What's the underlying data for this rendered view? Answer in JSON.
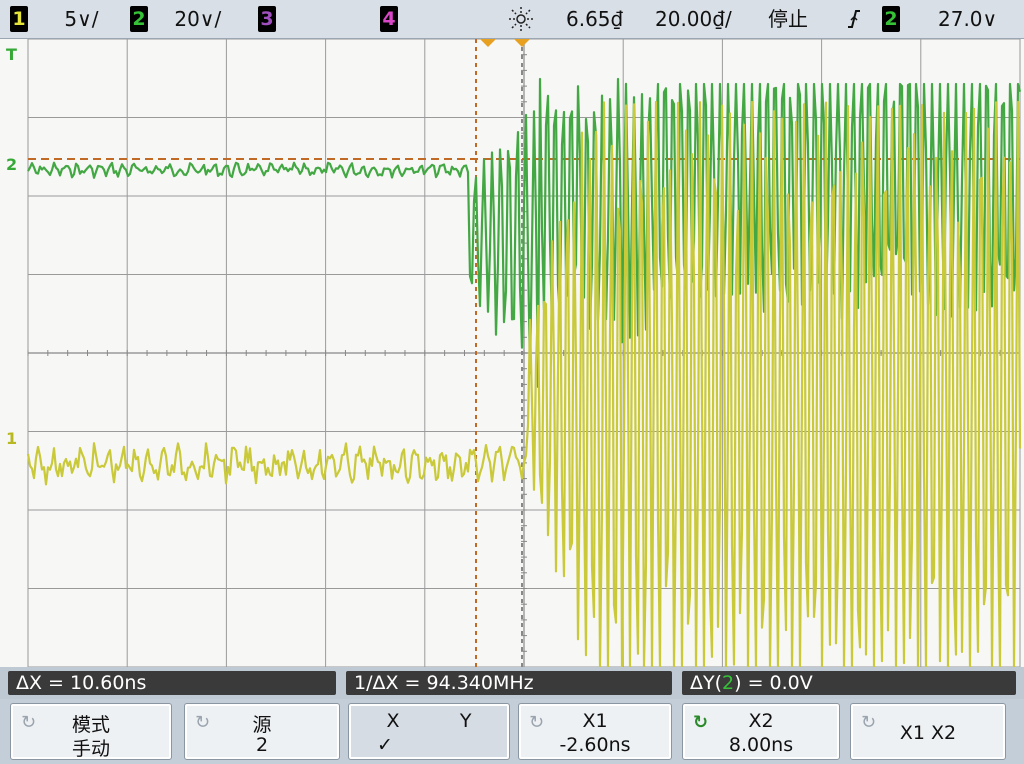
{
  "top_bar": {
    "ch1": {
      "num": "1",
      "scale": "5∨/",
      "color": "#e3e33a"
    },
    "ch2": {
      "num": "2",
      "scale": "20∨/",
      "color": "#36c236"
    },
    "ch3": {
      "num": "3",
      "scale": "",
      "color": "#a04fbf"
    },
    "ch4": {
      "num": "4",
      "scale": "",
      "color": "#d946c8"
    },
    "acq_icon": "sun-acquire-icon",
    "sample_rate": "6.65₫",
    "timebase": "20.00₫/",
    "run_state": "停止",
    "trigger_slope_icon": "rising-edge-trigger-icon",
    "trigger_source": "2",
    "trigger_level": "27.0∨"
  },
  "screen": {
    "ch1_marker": "1",
    "ch2_marker": "2",
    "trigger_marker": "T",
    "trace_colors": {
      "ch1": "#c9c93a",
      "ch2": "#43a843",
      "cursor": "#c0702a",
      "grid": "#8c8c8c",
      "background": "#f7f7f6"
    }
  },
  "measurements": {
    "delta_x": "ΔX = 10.60ns",
    "inv_delta_x": "1/ΔX = 94.340MHz",
    "delta_y_prefix": "ΔY(",
    "delta_y_ch": "2",
    "delta_y_suffix": ") = 0.0V"
  },
  "softkeys": [
    {
      "icon": "rotate-knob-icon",
      "line1": "模式",
      "line2": "手动"
    },
    {
      "icon": "rotate-knob-icon",
      "line1": "源",
      "line2": "2"
    },
    {
      "icon": "",
      "line1": "X          Y",
      "line2": "✓"
    },
    {
      "icon": "rotate-knob-icon",
      "line1": "X1",
      "line2": "-2.60ns"
    },
    {
      "icon": "rotate-knob-active-icon",
      "line1": "X2",
      "line2": "8.00ns"
    },
    {
      "icon": "rotate-knob-icon",
      "line1": "X1 X2",
      "line2": ""
    }
  ]
}
